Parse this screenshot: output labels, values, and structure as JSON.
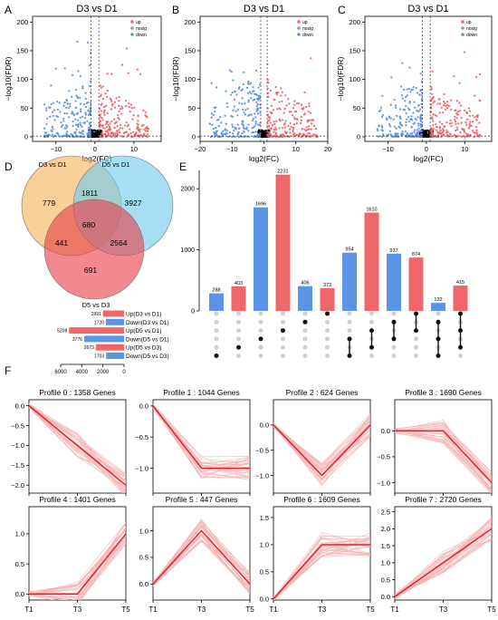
{
  "colors": {
    "up": "#f0676b",
    "down": "#5b95e8",
    "nosig": "#000000",
    "ven_a": "#f3b55b",
    "ven_b": "#6fcbed",
    "ven_c": "#e9414b",
    "bar_red": "#f0676b",
    "bar_blue": "#5b95e8",
    "profile_light": "#f7b4b4",
    "profile_main": "#d81e28"
  },
  "panel_labels": [
    "A",
    "B",
    "C",
    "D",
    "E",
    "F"
  ],
  "chart_data": [
    {
      "id": "A",
      "type": "scatter",
      "title": "D3 vs D1",
      "xlabel": "log2(FC)",
      "ylabel": "−log10(FDR)",
      "xticks": [
        -10,
        0,
        10
      ],
      "yticks": [
        0,
        50,
        100,
        150,
        200
      ],
      "xlim": [
        -16,
        17
      ],
      "ylim": [
        -8,
        210
      ],
      "vlines": [
        -1,
        1
      ],
      "hline": 1.3,
      "legend": [
        "up",
        "nosig",
        "down"
      ],
      "legend_position": "top-right",
      "seed": 11
    },
    {
      "id": "B",
      "type": "scatter",
      "title": "D3 vs D1",
      "xlabel": "log2(FC)",
      "ylabel": "−log10(FDR)",
      "xticks": [
        -20,
        -10,
        0,
        10,
        20
      ],
      "yticks": [
        0,
        50,
        100,
        150,
        200
      ],
      "xlim": [
        -20,
        20
      ],
      "ylim": [
        -8,
        210
      ],
      "vlines": [
        -1,
        1
      ],
      "hline": 1.3,
      "legend": [
        "up",
        "nosig",
        "down"
      ],
      "legend_position": "top-right",
      "seed": 23
    },
    {
      "id": "C",
      "type": "scatter",
      "title": "D3 vs D1",
      "xlabel": "log2(FC)",
      "ylabel": "−log10(FDR)",
      "xticks": [
        -10,
        0,
        10
      ],
      "yticks": [
        0,
        50,
        100,
        150,
        200
      ],
      "xlim": [
        -16,
        17
      ],
      "ylim": [
        -8,
        210
      ],
      "vlines": [
        -1,
        1
      ],
      "hline": 1.3,
      "legend": [
        "up",
        "nosig",
        "down"
      ],
      "legend_position": "top-right",
      "seed": 37
    },
    {
      "id": "D",
      "type": "venn",
      "sets": [
        "D3 vs D1",
        "D5 vs D1",
        "D5 vs D3"
      ],
      "regions": {
        "only_a": 779,
        "a_b": 1811,
        "only_b": 3927,
        "a_b_c": 680,
        "a_c": 441,
        "b_c": 2564,
        "only_c": 691
      }
    },
    {
      "id": "E",
      "type": "bar",
      "subtype": "upset",
      "ylim": [
        0,
        2300
      ],
      "yticks": [
        0,
        1000,
        2000
      ],
      "bars": [
        {
          "value": 288,
          "color": "blue",
          "dots": [
            5
          ]
        },
        {
          "value": 403,
          "color": "red",
          "dots": [
            4
          ]
        },
        {
          "value": 1696,
          "color": "blue",
          "dots": [
            3
          ]
        },
        {
          "value": 2231,
          "color": "red",
          "dots": [
            2
          ]
        },
        {
          "value": 406,
          "color": "blue",
          "dots": [
            1
          ]
        },
        {
          "value": 373,
          "color": "red",
          "dots": [
            0
          ]
        },
        {
          "value": 954,
          "color": "blue",
          "dots": [
            3,
            5
          ]
        },
        {
          "value": 1610,
          "color": "red",
          "dots": [
            2,
            4
          ]
        },
        {
          "value": 937,
          "color": "blue",
          "dots": [
            1,
            3
          ]
        },
        {
          "value": 874,
          "color": "red",
          "dots": [
            0,
            2
          ]
        },
        {
          "value": 132,
          "color": "blue",
          "dots": [
            1,
            3,
            5
          ]
        },
        {
          "value": 415,
          "color": "red",
          "dots": [
            0,
            2,
            4
          ]
        }
      ],
      "sets": [
        {
          "name": "Up(D3 vs D1)",
          "size": 1991,
          "color": "red"
        },
        {
          "name": "Down(D3 vs D1)",
          "size": 1720,
          "color": "blue"
        },
        {
          "name": "Up(D5 vs D1)",
          "size": 5208,
          "color": "red"
        },
        {
          "name": "Down(D5 vs D1)",
          "size": 3776,
          "color": "blue"
        },
        {
          "name": "Up(D5 vs D3)",
          "size": 2673,
          "color": "red"
        },
        {
          "name": "Down(D5 vs D3)",
          "size": 1703,
          "color": "blue"
        }
      ],
      "set_axis_ticks": [
        6000,
        4000,
        2000,
        0
      ],
      "set_axis_max": 6000
    },
    {
      "id": "F",
      "type": "line",
      "x": [
        "T1",
        "T3",
        "T5"
      ],
      "profiles": [
        {
          "title": "Profile 0 : 1358 Genes",
          "values": [
            0,
            -1,
            -2
          ],
          "ylim": [
            -2.2,
            0.15
          ],
          "yticks": [
            0,
            -0.5,
            -1,
            -1.5,
            -2
          ],
          "ytick_labels": [
            "0.0",
            "−0.5",
            "−1.0",
            "−1.5",
            "−2.0"
          ]
        },
        {
          "title": "Profile 1 : 1044 Genes",
          "values": [
            0,
            -1,
            -1
          ],
          "ylim": [
            -1.4,
            0.1
          ],
          "yticks": [
            0,
            -0.5,
            -1
          ],
          "ytick_labels": [
            "0.0",
            "−0.5",
            "−1.0"
          ]
        },
        {
          "title": "Profile 2 : 624 Genes",
          "values": [
            0,
            -1,
            0
          ],
          "ylim": [
            -1.35,
            0.5
          ],
          "yticks": [
            0,
            -0.5,
            -1
          ],
          "ytick_labels": [
            "0.0",
            "−0.5",
            "−1.0"
          ]
        },
        {
          "title": "Profile 3 : 1690 Genes",
          "values": [
            0,
            0,
            -1
          ],
          "ylim": [
            -1.2,
            0.6
          ],
          "yticks": [
            0,
            -0.5,
            -1
          ],
          "ytick_labels": [
            "0.0",
            "−0.5",
            "−1.0"
          ]
        },
        {
          "title": "Profile 4 : 1401 Genes",
          "values": [
            0,
            0,
            1
          ],
          "ylim": [
            -0.1,
            1.45
          ],
          "yticks": [
            0,
            0.5,
            1
          ],
          "ytick_labels": [
            "0.0",
            "0.5",
            "1.0"
          ]
        },
        {
          "title": "Profile 5 : 447 Genes",
          "values": [
            0,
            1,
            0
          ],
          "ylim": [
            -0.3,
            1.45
          ],
          "yticks": [
            0,
            0.5,
            1
          ],
          "ytick_labels": [
            "0.0",
            "0.5",
            "1.0"
          ]
        },
        {
          "title": "Profile 6 : 1609 Genes",
          "values": [
            0,
            1,
            1
          ],
          "ylim": [
            -0.02,
            1.7
          ],
          "yticks": [
            0,
            0.5,
            1,
            1.5
          ],
          "ytick_labels": [
            "0.0",
            "0.5",
            "1.0",
            "1.5"
          ]
        },
        {
          "title": "Profile 7 : 2720 Genes",
          "values": [
            0,
            1,
            2
          ],
          "ylim": [
            -0.1,
            2.65
          ],
          "yticks": [
            0,
            0.5,
            1,
            1.5,
            2,
            2.5
          ],
          "ytick_labels": [
            "0.0",
            "0.5",
            "1.0",
            "1.5",
            "2.0",
            "2.5"
          ]
        }
      ]
    }
  ]
}
